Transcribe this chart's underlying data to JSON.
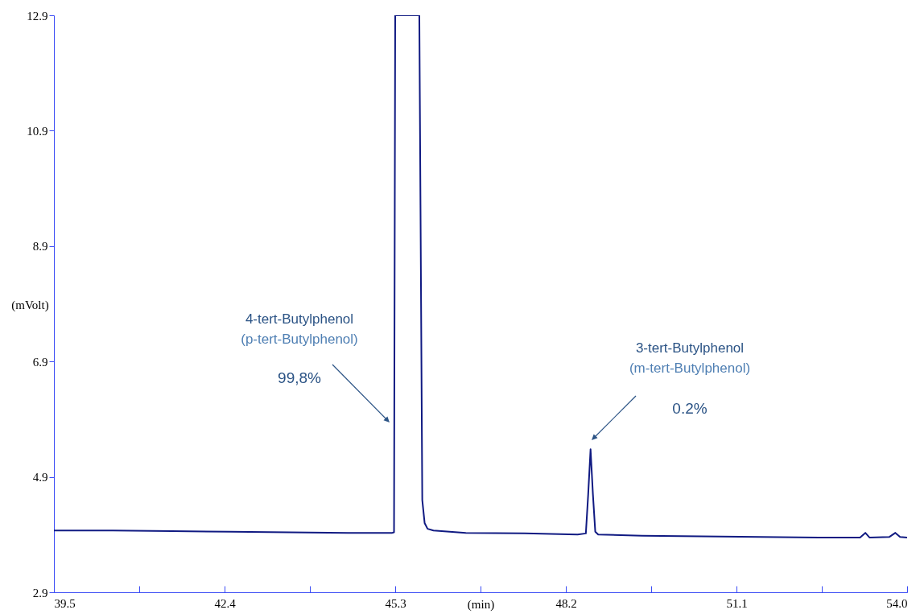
{
  "chart_data": {
    "type": "line",
    "xlabel": "(min)",
    "ylabel": "(mVolt)",
    "xlim": [
      39.5,
      54.0
    ],
    "ylim": [
      2.9,
      12.9
    ],
    "xticks": [
      39.5,
      {
        "value": 40.95,
        "label": null
      },
      42.4,
      {
        "value": 43.85,
        "label": null
      },
      45.3,
      {
        "value": 46.75,
        "label": null
      },
      48.2,
      {
        "value": 49.65,
        "label": null
      },
      51.1,
      {
        "value": 52.55,
        "label": null
      },
      {
        "value": 54,
        "label": "54.0"
      }
    ],
    "yticks": [
      2.9,
      4.9,
      6.9,
      8.9,
      10.9,
      12.9
    ],
    "grid": false,
    "marker": "none",
    "line_style": "solid",
    "x": [
      39.5,
      40.5,
      41.5,
      42.5,
      43.5,
      44.5,
      45.25,
      45.28,
      45.3,
      45.71,
      45.76,
      45.8,
      45.85,
      45.95,
      46.5,
      47.5,
      48.4,
      48.54,
      48.58,
      48.62,
      48.66,
      48.7,
      48.75,
      49.5,
      50.5,
      51.5,
      52.5,
      53.2,
      53.29,
      53.36,
      53.7,
      53.8,
      53.88,
      54.0
    ],
    "series": [
      {
        "color": "#101a82",
        "values": [
          3.97,
          3.97,
          3.96,
          3.95,
          3.94,
          3.93,
          3.93,
          3.94,
          12.9,
          12.9,
          4.5,
          4.1,
          4.0,
          3.97,
          3.93,
          3.92,
          3.9,
          3.92,
          4.6,
          5.38,
          4.6,
          3.95,
          3.9,
          3.88,
          3.87,
          3.86,
          3.85,
          3.85,
          3.93,
          3.85,
          3.86,
          3.93,
          3.86,
          3.85
        ]
      }
    ],
    "annotations": [
      "4-tert-Butylphenol",
      "(p-tert-Butylphenol)",
      "99,8%",
      "3-tert-Butylphenol",
      "(m-tert-Butylphenol)",
      "0.2%"
    ]
  }
}
